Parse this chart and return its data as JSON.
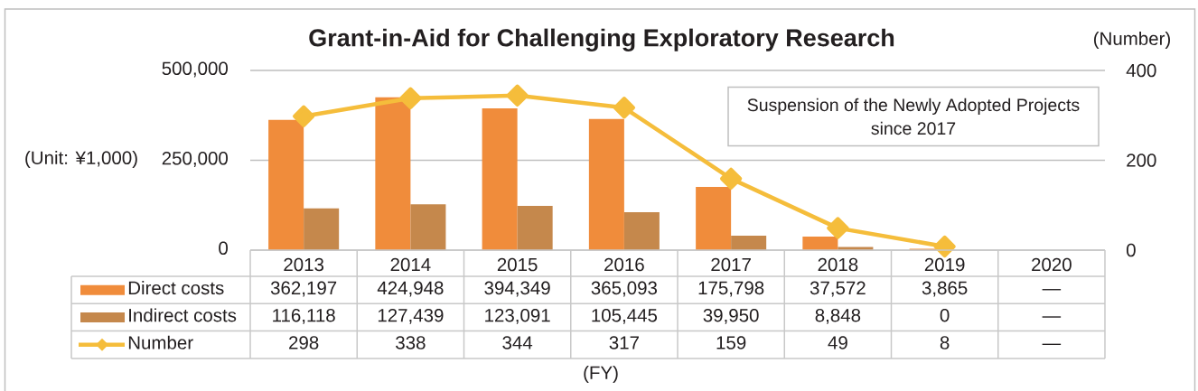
{
  "chart_data": {
    "type": "bar",
    "title": "Grant-in-Aid for Challenging Exploratory Research",
    "ylabel": "(Unit: ¥1,000)",
    "y2label": "(Number)",
    "categories": [
      "2013",
      "2014",
      "2015",
      "2016",
      "2017",
      "2018",
      "2019",
      "2020"
    ],
    "series": [
      {
        "name": "Direct costs",
        "color": "#f08c3b",
        "values": [
          362197,
          424948,
          394349,
          365093,
          175798,
          37572,
          3865,
          null
        ],
        "value_labels": [
          "362,197",
          "424,948",
          "394,349",
          "365,093",
          "175,798",
          "37,572",
          "3,865",
          "—"
        ]
      },
      {
        "name": "Indirect costs",
        "color": "#c5884c",
        "values": [
          116118,
          127439,
          123091,
          105445,
          39950,
          8848,
          0,
          null
        ],
        "value_labels": [
          "116,118",
          "127,439",
          "123,091",
          "105,445",
          "39,950",
          "8,848",
          "0",
          "—"
        ]
      },
      {
        "name": "Number",
        "type": "line",
        "axis": "y2",
        "color": "#f5bd3b",
        "marker": "diamond",
        "values": [
          298,
          338,
          344,
          317,
          159,
          49,
          8,
          null
        ],
        "value_labels": [
          "298",
          "338",
          "344",
          "317",
          "159",
          "49",
          "8",
          "—"
        ]
      }
    ],
    "ylim": [
      0,
      500000
    ],
    "yticks": [
      0,
      {
        "value": 250000,
        "label": "250,000"
      },
      {
        "value": 500000,
        "label": "500,000"
      }
    ],
    "y2lim": [
      0,
      400
    ],
    "y2ticks": [
      0,
      200,
      400
    ],
    "grid": "y",
    "legend": "bottom left",
    "annotations": [
      "Suspension of the Newly Adopted Projects since 2017",
      "(FY)"
    ]
  }
}
